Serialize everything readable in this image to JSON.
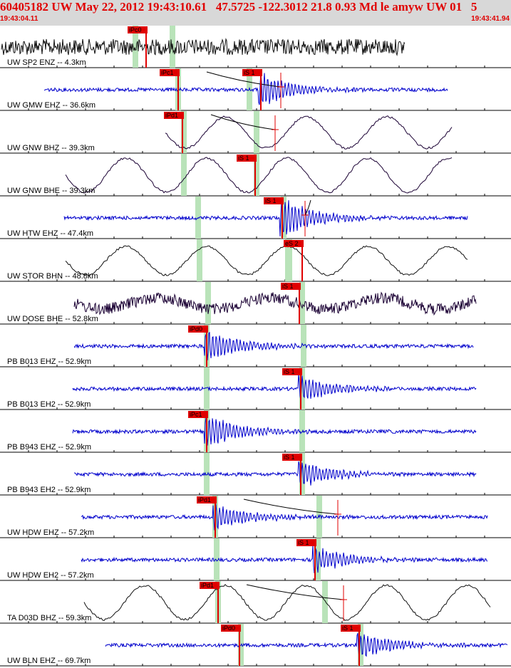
{
  "header": {
    "title": "60405182 UW May 22, 2012 19:43:10.61   47.5725 -122.3012 21.8 0.93 Md le amyw UW 01   5",
    "time_start": "19:43:04.11",
    "time_end": "19:43:41.94"
  },
  "colors": {
    "pick_box": "#e00000",
    "pick_line": "#e00000",
    "window": "#b9e3b9",
    "wave_blue": "#0000cc",
    "wave_dark": "#1a0033",
    "wave_black": "#111111",
    "separator": "#000000"
  },
  "traces": [
    {
      "label": "UW SP2 ENZ -- 4.3km",
      "color": "wave_black",
      "kind": "noise",
      "picks": [
        {
          "label": "iPc0"
        }
      ]
    },
    {
      "label": "UW GMW EHZ -- 36.6km",
      "color": "wave_blue",
      "kind": "quake",
      "picks": [
        {
          "label": "iPc1"
        },
        {
          "label": "iS 1"
        }
      ]
    },
    {
      "label": "UW GNW BHZ -- 39.3km",
      "color": "wave_dark",
      "kind": "swell",
      "picks": [
        {
          "label": "iPd1"
        }
      ]
    },
    {
      "label": "UW GNW BHE -- 39.3km",
      "color": "wave_dark",
      "kind": "swell",
      "picks": [
        {
          "label": "iS 1"
        }
      ]
    },
    {
      "label": "UW HTW EHZ -- 47.4km",
      "color": "wave_blue",
      "kind": "quake",
      "picks": [
        {
          "label": "iS 1"
        }
      ]
    },
    {
      "label": "UW STOR BHN -- 48.8km",
      "color": "wave_black",
      "kind": "swell",
      "picks": [
        {
          "label": "eS 2"
        }
      ]
    },
    {
      "label": "UW DOSE BHE -- 52.8km",
      "color": "wave_dark",
      "kind": "noisy",
      "picks": [
        {
          "label": "iS 1"
        }
      ]
    },
    {
      "label": "PB B013 EHZ -- 52.9km",
      "color": "wave_blue",
      "kind": "quake",
      "picks": [
        {
          "label": "iPd0"
        }
      ]
    },
    {
      "label": "PB B013 EH2 -- 52.9km",
      "color": "wave_blue",
      "kind": "quake",
      "picks": [
        {
          "label": "iS 1"
        }
      ]
    },
    {
      "label": "PB B943 EHZ -- 52.9km",
      "color": "wave_blue",
      "kind": "quake",
      "picks": [
        {
          "label": "iPc1"
        }
      ]
    },
    {
      "label": "PB B943 EH2 -- 52.9km",
      "color": "wave_blue",
      "kind": "quake",
      "picks": [
        {
          "label": "iS 1"
        }
      ]
    },
    {
      "label": "UW HDW EHZ -- 57.2km",
      "color": "wave_blue",
      "kind": "quake",
      "picks": [
        {
          "label": "iPd1"
        }
      ]
    },
    {
      "label": "UW HDW EH2 -- 57.2km",
      "color": "wave_blue",
      "kind": "quake",
      "picks": [
        {
          "label": "iS 1"
        }
      ]
    },
    {
      "label": "TA D03D BHZ -- 59.3km",
      "color": "wave_black",
      "kind": "swell",
      "picks": [
        {
          "label": "iPd1"
        }
      ]
    },
    {
      "label": "UW BLN EHZ -- 69.7km",
      "color": "wave_blue",
      "kind": "quake",
      "picks": [
        {
          "label": "iPd0"
        },
        {
          "label": "iS 1"
        }
      ]
    }
  ]
}
